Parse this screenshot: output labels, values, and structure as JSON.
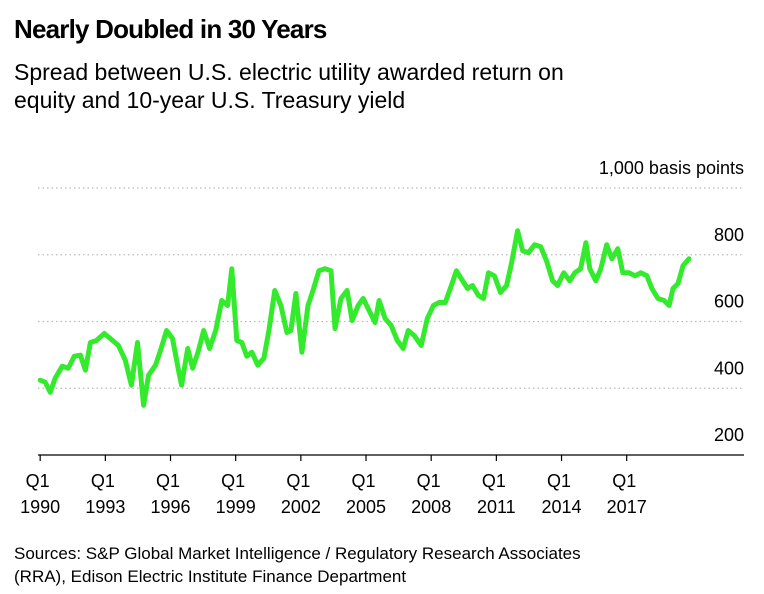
{
  "chart_data": {
    "type": "line",
    "title": "Nearly Doubled in 30 Years",
    "subtitle": [
      "Spread between U.S. electric utility awarded return on",
      "equity and 10-year U.S. Treasury yield"
    ],
    "source": [
      "Sources: S&P Global Market Intelligence / Regulatory Research Associates",
      "(RRA), Edison Electric Institute Finance Department"
    ],
    "xlim": [
      1989.9,
      2022.4
    ],
    "ylim": [
      200,
      1000
    ],
    "xticks": [
      {
        "value": 1990,
        "label": "Q1 1990"
      },
      {
        "value": 1993,
        "label": "Q1 1993"
      },
      {
        "value": 1996,
        "label": "Q1 1996"
      },
      {
        "value": 1999,
        "label": "Q1 1999"
      },
      {
        "value": 2002,
        "label": "Q1 2002"
      },
      {
        "value": 2005,
        "label": "Q1 2005"
      },
      {
        "value": 2008,
        "label": "Q1 2008"
      },
      {
        "value": 2011,
        "label": "Q1 2011"
      },
      {
        "value": 2014,
        "label": "Q1 2014"
      },
      {
        "value": 2017,
        "label": "Q1 2017"
      }
    ],
    "yticks": [
      200,
      400,
      600,
      800,
      {
        "value": 1000,
        "label": "1,000 basis points"
      }
    ],
    "grid": true,
    "series": [
      {
        "color": "#33ea2c",
        "x": [
          1990,
          1990.23,
          1990.46,
          1990.69,
          1991.02,
          1991.29,
          1991.57,
          1991.85,
          1992.08,
          1992.31,
          1992.59,
          1992.95,
          1993.23,
          1993.6,
          1993.92,
          1994.2,
          1994.48,
          1994.76,
          1994.99,
          1995.31,
          1995.54,
          1995.82,
          1996.09,
          1996.37,
          1996.51,
          1996.79,
          1997.02,
          1997.29,
          1997.53,
          1997.8,
          1998.08,
          1998.36,
          1998.63,
          1998.82,
          1999.05,
          1999.28,
          1999.51,
          1999.74,
          2000.02,
          2000.3,
          2000.53,
          2000.8,
          2001.08,
          2001.36,
          2001.54,
          2001.77,
          2002.05,
          2002.33,
          2002.56,
          2002.83,
          2003.11,
          2003.39,
          2003.57,
          2003.85,
          2004.13,
          2004.36,
          2004.64,
          2004.87,
          2005.14,
          2005.42,
          2005.6,
          2005.88,
          2006.16,
          2006.44,
          2006.71,
          2006.94,
          2007.22,
          2007.54,
          2007.82,
          2008.1,
          2008.37,
          2008.65,
          2008.93,
          2009.16,
          2009.39,
          2009.67,
          2009.9,
          2010.18,
          2010.41,
          2010.64,
          2010.91,
          2011.19,
          2011.47,
          2011.7,
          2011.98,
          2012.21,
          2012.48,
          2012.76,
          2013.04,
          2013.31,
          2013.59,
          2013.82,
          2014.1,
          2014.38,
          2014.61,
          2014.88,
          2015.12,
          2015.3,
          2015.58,
          2015.81,
          2016.08,
          2016.32,
          2016.59,
          2016.82,
          2017.1,
          2017.38,
          2017.65,
          2017.93,
          2018.16,
          2018.44,
          2018.72,
          2018.95,
          2019.13,
          2019.36,
          2019.59,
          2019.87
        ],
        "values": [
          424,
          418,
          388,
          430,
          466,
          460,
          496,
          499,
          454,
          537,
          543,
          564,
          549,
          528,
          484,
          409,
          537,
          349,
          439,
          469,
          513,
          573,
          549,
          454,
          409,
          519,
          460,
          513,
          573,
          519,
          573,
          663,
          648,
          758,
          543,
          537,
          496,
          508,
          469,
          490,
          573,
          693,
          648,
          567,
          573,
          684,
          508,
          648,
          693,
          752,
          758,
          752,
          579,
          669,
          693,
          603,
          648,
          669,
          633,
          597,
          663,
          609,
          588,
          543,
          519,
          573,
          558,
          528,
          609,
          648,
          657,
          657,
          708,
          752,
          728,
          699,
          708,
          678,
          669,
          746,
          737,
          687,
          708,
          776,
          872,
          812,
          806,
          830,
          824,
          782,
          722,
          708,
          746,
          722,
          746,
          758,
          836,
          758,
          722,
          758,
          830,
          788,
          818,
          746,
          746,
          737,
          746,
          737,
          699,
          669,
          663,
          648,
          699,
          714,
          767,
          788
        ]
      }
    ]
  }
}
